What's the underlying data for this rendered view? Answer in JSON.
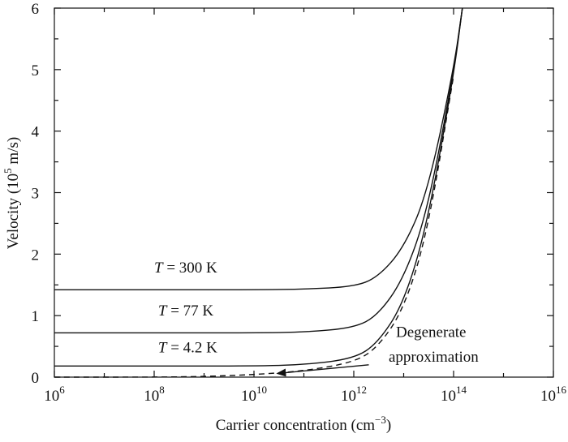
{
  "chart_data": {
    "type": "line",
    "xlabel": "Carrier concentration (cm",
    "xlabel_unit_exp": "−3",
    "xlabel_close": ")",
    "ylabel": "Velocity (10",
    "ylabel_unit_exp": "5",
    "ylabel_unit": " m/s)",
    "x_scale": "log",
    "xlim": [
      1000000.0,
      1e+16
    ],
    "ylim": [
      0,
      6
    ],
    "x_ticks": [
      {
        "base": "10",
        "exp": "6",
        "value": 1000000.0
      },
      {
        "base": "10",
        "exp": "8",
        "value": 100000000.0
      },
      {
        "base": "10",
        "exp": "10",
        "value": 10000000000.0
      },
      {
        "base": "10",
        "exp": "12",
        "value": 1000000000000.0
      },
      {
        "base": "10",
        "exp": "14",
        "value": 100000000000000.0
      },
      {
        "base": "10",
        "exp": "16",
        "value": 1e+16
      }
    ],
    "y_ticks": [
      "0",
      "1",
      "2",
      "3",
      "4",
      "5",
      "6"
    ],
    "grid": false,
    "series": [
      {
        "name": "T = 300 K",
        "style": "solid",
        "x": [
          1000000.0,
          100000000.0,
          10000000000.0,
          100000000000.0,
          1000000000000.0,
          3000000000000.0,
          10000000000000.0,
          30000000000000.0,
          100000000000000.0,
          150000000000000.0
        ],
        "y": [
          1.42,
          1.42,
          1.42,
          1.43,
          1.47,
          1.62,
          2.1,
          3.0,
          5.0,
          6.0
        ]
      },
      {
        "name": "T = 77 K",
        "style": "solid",
        "x": [
          1000000.0,
          100000000.0,
          10000000000.0,
          100000000000.0,
          1000000000000.0,
          3000000000000.0,
          10000000000000.0,
          30000000000000.0,
          100000000000000.0,
          150000000000000.0
        ],
        "y": [
          0.72,
          0.72,
          0.72,
          0.73,
          0.8,
          1.0,
          1.6,
          2.7,
          4.95,
          6.0
        ]
      },
      {
        "name": "T = 4.2 K",
        "style": "solid",
        "x": [
          1000000.0,
          100000000.0,
          10000000000.0,
          100000000000.0,
          1000000000000.0,
          3000000000000.0,
          10000000000000.0,
          30000000000000.0,
          100000000000000.0,
          150000000000000.0
        ],
        "y": [
          0.18,
          0.18,
          0.18,
          0.2,
          0.3,
          0.55,
          1.2,
          2.5,
          4.9,
          6.0
        ]
      },
      {
        "name": "Degenerate approximation",
        "style": "dashed",
        "x": [
          1000000.0,
          100000000.0,
          1000000000.0,
          10000000000.0,
          100000000000.0,
          1000000000000.0,
          3000000000000.0,
          10000000000000.0,
          30000000000000.0,
          100000000000000.0
        ],
        "y": [
          0.0,
          0.0,
          0.01,
          0.04,
          0.1,
          0.24,
          0.48,
          1.1,
          2.35,
          4.9
        ]
      }
    ],
    "annotations": [
      {
        "text": "T",
        "rest": " = 300 K",
        "x": 100000000.0,
        "y": 1.7
      },
      {
        "text": "T",
        "rest": " = 77 K",
        "x": 120000000.0,
        "y": 1.0
      },
      {
        "text": "T",
        "rest": " = 4.2 K",
        "x": 120000000.0,
        "y": 0.4
      },
      {
        "text": "Degenerate",
        "x": 7000000000000.0,
        "y": 0.65
      },
      {
        "text": "approximation",
        "x": 5000000000000.0,
        "y": 0.25
      }
    ],
    "arrow": {
      "from_x": 2000000000000.0,
      "from_y": 0.2,
      "to_x": 30000000000.0,
      "to_y": 0.06
    }
  }
}
